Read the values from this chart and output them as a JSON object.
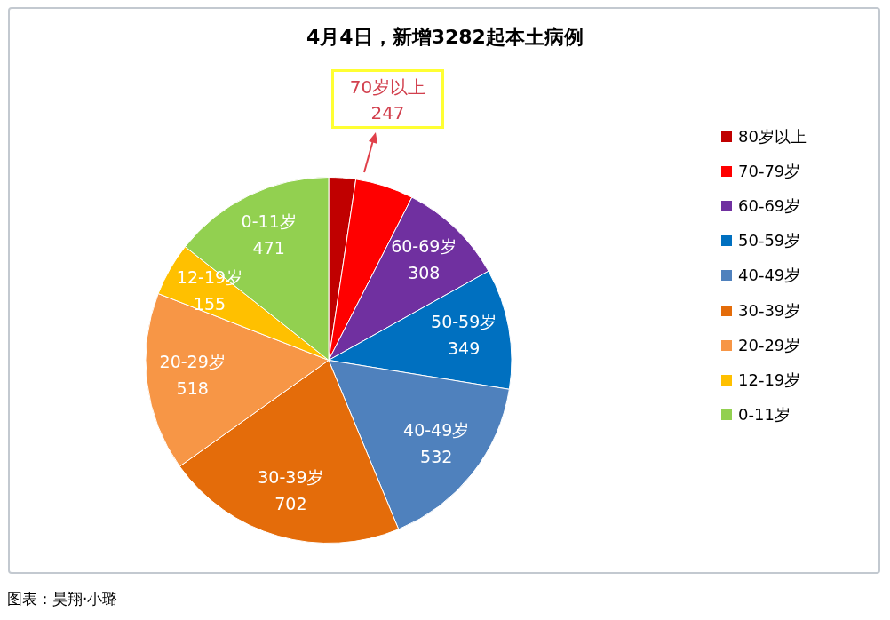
{
  "chart_data": {
    "type": "pie",
    "title": "4月4日，新增3282起本土病例",
    "categories": [
      "80岁以上",
      "70-79岁",
      "60-69岁",
      "50-59岁",
      "40-49岁",
      "30-39岁",
      "20-29岁",
      "12-19岁",
      "0-11岁"
    ],
    "values": [
      78,
      169,
      308,
      349,
      532,
      702,
      518,
      155,
      471
    ],
    "colors": [
      "#c00000",
      "#ff0000",
      "#7030a0",
      "#0070c0",
      "#4f81bd",
      "#e46c0a",
      "#f79646",
      "#ffc000",
      "#92d050"
    ],
    "value_labels": [
      null,
      null,
      "308",
      "349",
      "532",
      "702",
      "518",
      "155",
      "471"
    ],
    "legend": "right",
    "annotations": [
      "70岁以上\n247",
      "图表：昊翔·小璐"
    ]
  }
}
